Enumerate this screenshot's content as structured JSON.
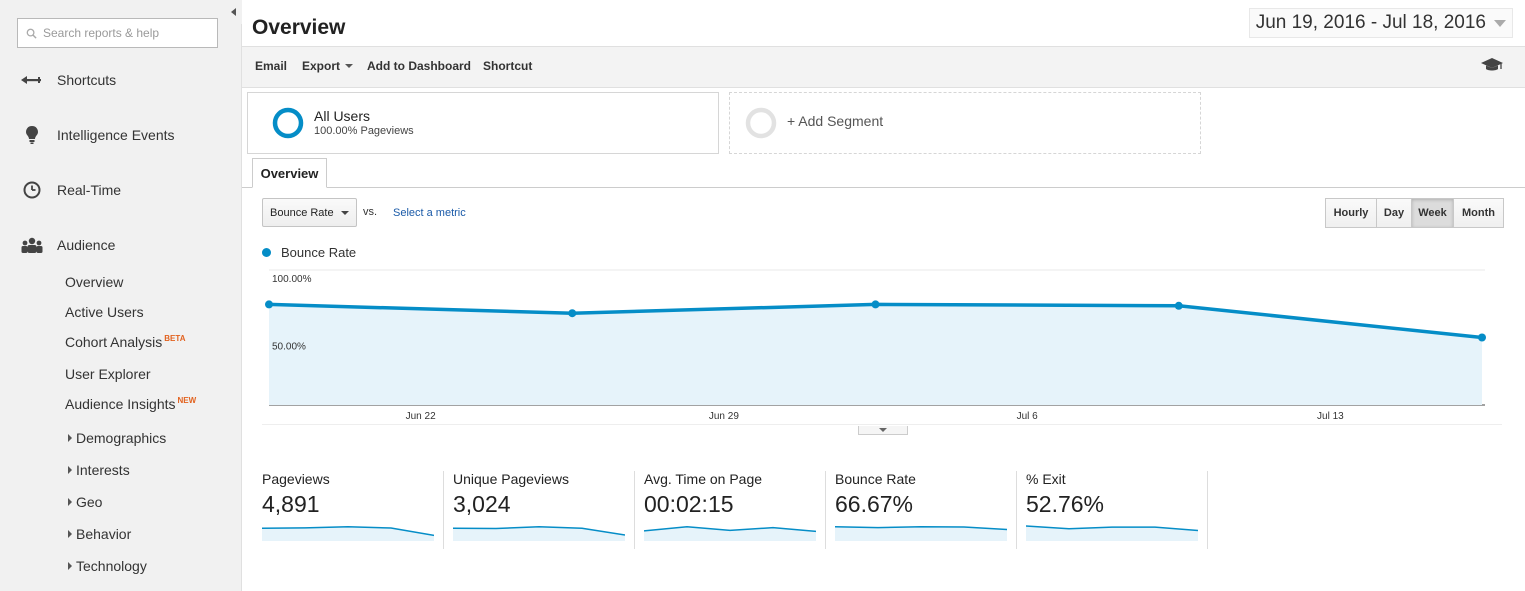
{
  "sidebar": {
    "search_placeholder": "Search reports & help",
    "main_items": [
      {
        "label": "Shortcuts",
        "icon": "shortcut-arrow-icon"
      },
      {
        "label": "Intelligence Events",
        "icon": "lightbulb-icon"
      },
      {
        "label": "Real-Time",
        "icon": "clock-icon"
      },
      {
        "label": "Audience",
        "icon": "people-icon"
      }
    ],
    "audience_items": [
      {
        "label": "Overview",
        "badge": ""
      },
      {
        "label": "Active Users",
        "badge": ""
      },
      {
        "label": "Cohort Analysis",
        "badge": "BETA"
      },
      {
        "label": "User Explorer",
        "badge": ""
      },
      {
        "label": "Audience Insights",
        "badge": "NEW"
      }
    ],
    "expandable_items": [
      "Demographics",
      "Interests",
      "Geo",
      "Behavior",
      "Technology"
    ]
  },
  "header": {
    "title": "Overview",
    "date_range": "Jun 19, 2016 - Jul 18, 2016"
  },
  "toolbar": {
    "email": "Email",
    "export": "Export",
    "add_to_dashboard": "Add to Dashboard",
    "shortcut": "Shortcut"
  },
  "segments": {
    "all_users_name": "All Users",
    "all_users_sub": "100.00% Pageviews",
    "add_segment": "+ Add Segment"
  },
  "tabs": {
    "overview": "Overview"
  },
  "metric_controls": {
    "selected_metric": "Bounce Rate",
    "vs": "vs.",
    "select_metric": "Select a metric",
    "time_buttons": [
      "Hourly",
      "Day",
      "Week",
      "Month"
    ],
    "active_time": "Week"
  },
  "chart_data": {
    "type": "area",
    "series": [
      {
        "name": "Bounce Rate",
        "values": [
          74.5,
          68,
          74.5,
          73.5,
          50
        ]
      }
    ],
    "x": [
      "Jun 19",
      "Jun 26",
      "Jul 3",
      "Jul 10",
      "Jul 17"
    ],
    "x_tick_labels": [
      "Jun 22",
      "Jun 29",
      "Jul 6",
      "Jul 13"
    ],
    "y_tick_labels": [
      "100.00%",
      "50.00%"
    ],
    "ylim": [
      0,
      100
    ],
    "color": "#058dc7",
    "fill": "#e6f3fa",
    "legend": "top-left",
    "grid": true
  },
  "scorecards": [
    {
      "label": "Pageviews",
      "value": "4,891",
      "trend": [
        60,
        62,
        68,
        61,
        20
      ]
    },
    {
      "label": "Unique Pageviews",
      "value": "3,024",
      "trend": [
        60,
        58,
        68,
        60,
        22
      ]
    },
    {
      "label": "Avg. Time on Page",
      "value": "00:02:15",
      "trend": [
        45,
        68,
        48,
        63,
        42
      ]
    },
    {
      "label": "Bounce Rate",
      "value": "66.67%",
      "trend": [
        68,
        63,
        68,
        67,
        53
      ]
    },
    {
      "label": "% Exit",
      "value": "52.76%",
      "trend": [
        72,
        57,
        66,
        66,
        47
      ]
    }
  ]
}
